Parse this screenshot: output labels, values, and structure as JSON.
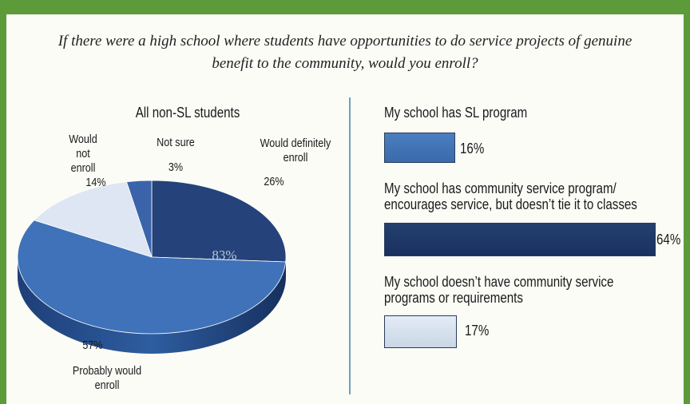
{
  "question": "If there were a high school where students have opportunities to do service projects of genuine benefit to the community, would you enroll?",
  "colors": {
    "frame": "#5c9a3a",
    "divider": "#6f9dc4",
    "would_definitely": "#25427a",
    "probably": "#3f72b8",
    "would_not": "#dde6f2",
    "not_sure": "#3a63aa"
  },
  "chart_data": [
    {
      "type": "pie",
      "title": "All non-SL students",
      "center_label": "83%",
      "slices": [
        {
          "label": "Would definitely enroll",
          "value": 26,
          "value_label": "26%"
        },
        {
          "label": "Probably would enroll",
          "value": 57,
          "value_label": "57%"
        },
        {
          "label": "Would not enroll",
          "value": 14,
          "value_label": "14%"
        },
        {
          "label": "Not sure",
          "value": 3,
          "value_label": "3%"
        }
      ]
    },
    {
      "type": "bar",
      "orientation": "horizontal",
      "categories": [
        "My school has SL program",
        "My school has community service program/ encourages service, but doesn’t tie it to classes",
        "My school doesn’t have community service programs or requirements"
      ],
      "values": [
        16,
        64,
        17
      ],
      "value_labels": [
        "16%",
        "64%",
        "17%"
      ]
    }
  ]
}
